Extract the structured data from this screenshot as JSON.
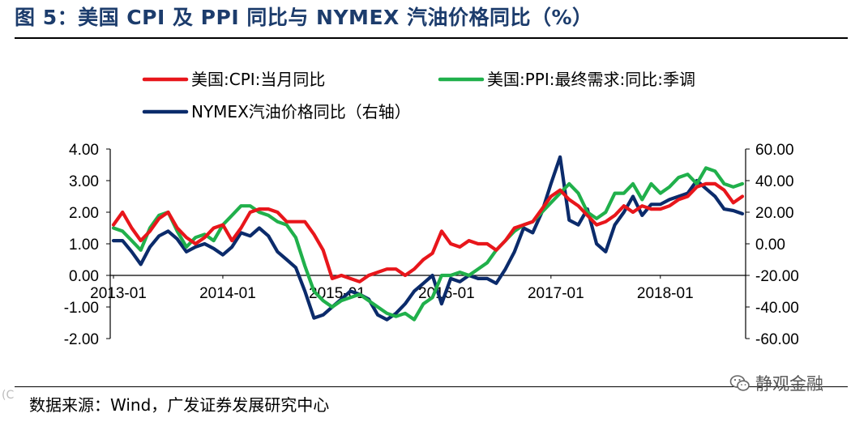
{
  "header": {
    "title": "图 5：美国 CPI 及 PPI 同比与 NYMEX 汽油价格同比（%）"
  },
  "footer": {
    "source": "数据来源：Wind，广发证券发展研究中心",
    "watermark": "静观金融",
    "corner_mark": "(C"
  },
  "colors": {
    "cpi": "#e8161b",
    "ppi": "#20b04b",
    "nymex": "#0b2b6b",
    "title": "#1c3c6c"
  },
  "chart_data": {
    "type": "line",
    "title": "美国 CPI 及 PPI 同比与 NYMEX 汽油价格同比（%）",
    "x_tick_labels": [
      "2013-01",
      "2014-01",
      "2015-01",
      "2016-01",
      "2017-01",
      "2018-01"
    ],
    "left_axis": {
      "ylim": [
        -2,
        4
      ],
      "ticks": [
        "4.00",
        "3.00",
        "2.00",
        "1.00",
        "0.00",
        "-1.00",
        "-2.00"
      ]
    },
    "right_axis": {
      "ylim": [
        -60,
        60
      ],
      "ticks": [
        "60.00",
        "40.00",
        "20.00",
        "0.00",
        "-20.00",
        "-40.00",
        "-60.00"
      ]
    },
    "months": 70,
    "series": [
      {
        "name": "美国:CPI:当月同比",
        "axis": "left",
        "color": "#e8161b",
        "values": [
          1.6,
          2.0,
          1.5,
          1.1,
          1.4,
          1.8,
          2.0,
          1.5,
          1.2,
          1.0,
          1.2,
          1.5,
          1.6,
          1.1,
          1.5,
          2.0,
          2.1,
          2.1,
          2.0,
          1.7,
          1.7,
          1.7,
          1.3,
          0.8,
          -0.1,
          0.0,
          -0.1,
          -0.2,
          0.0,
          0.1,
          0.2,
          0.2,
          0.0,
          0.2,
          0.5,
          0.7,
          1.4,
          1.0,
          0.9,
          1.1,
          1.0,
          1.0,
          0.8,
          1.1,
          1.5,
          1.6,
          1.7,
          2.1,
          2.5,
          2.7,
          2.4,
          2.2,
          1.9,
          1.6,
          1.7,
          1.9,
          2.2,
          2.0,
          2.2,
          2.1,
          2.1,
          2.2,
          2.4,
          2.5,
          2.8,
          2.9,
          2.9,
          2.7,
          2.3,
          2.5
        ]
      },
      {
        "name": "美国:PPI:最终需求:同比:季调",
        "axis": "left",
        "color": "#20b04b",
        "values": [
          1.5,
          1.4,
          1.1,
          0.8,
          1.5,
          1.9,
          2.0,
          1.4,
          0.9,
          1.2,
          1.3,
          1.1,
          1.6,
          1.9,
          2.2,
          2.2,
          2.0,
          1.9,
          1.7,
          1.6,
          1.2,
          0.3,
          -0.5,
          -0.8,
          -1.0,
          -0.8,
          -0.7,
          -0.6,
          -0.8,
          -1.0,
          -1.2,
          -1.3,
          -1.2,
          -1.4,
          -0.9,
          -0.7,
          0.0,
          0.0,
          0.1,
          0.0,
          0.2,
          0.4,
          0.8,
          1.1,
          1.4,
          1.6,
          1.7,
          2.0,
          2.3,
          2.6,
          2.9,
          2.6,
          2.0,
          1.8,
          2.0,
          2.6,
          2.6,
          2.9,
          2.4,
          2.9,
          2.6,
          2.8,
          3.1,
          3.2,
          2.9,
          3.4,
          3.3,
          2.9,
          2.8,
          2.9
        ]
      },
      {
        "name": "NYMEX汽油价格同比（右轴）",
        "axis": "right",
        "color": "#0b2b6b",
        "values": [
          2,
          2,
          -5,
          -13,
          -2,
          5,
          8,
          3,
          -5,
          -2,
          0,
          -3,
          -7,
          -2,
          7,
          5,
          10,
          5,
          -5,
          -10,
          -15,
          -30,
          -47,
          -45,
          -40,
          -35,
          -30,
          -32,
          -35,
          -45,
          -48,
          -44,
          -38,
          -30,
          -25,
          -20,
          -38,
          -22,
          -24,
          -20,
          -22,
          -22,
          -25,
          -16,
          -5,
          10,
          7,
          20,
          38,
          55,
          15,
          12,
          22,
          0,
          -5,
          12,
          20,
          30,
          18,
          25,
          25,
          28,
          30,
          32,
          40,
          35,
          30,
          22,
          21,
          19
        ]
      }
    ]
  }
}
